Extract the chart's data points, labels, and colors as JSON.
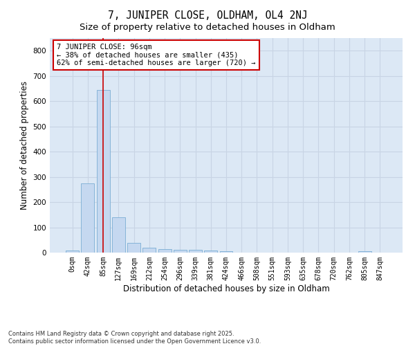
{
  "title": "7, JUNIPER CLOSE, OLDHAM, OL4 2NJ",
  "subtitle": "Size of property relative to detached houses in Oldham",
  "xlabel": "Distribution of detached houses by size in Oldham",
  "ylabel": "Number of detached properties",
  "bin_labels": [
    "0sqm",
    "42sqm",
    "85sqm",
    "127sqm",
    "169sqm",
    "212sqm",
    "254sqm",
    "296sqm",
    "339sqm",
    "381sqm",
    "424sqm",
    "466sqm",
    "508sqm",
    "551sqm",
    "593sqm",
    "635sqm",
    "678sqm",
    "720sqm",
    "762sqm",
    "805sqm",
    "847sqm"
  ],
  "bar_values": [
    8,
    275,
    645,
    140,
    38,
    20,
    14,
    12,
    12,
    8,
    5,
    0,
    0,
    0,
    0,
    0,
    0,
    0,
    0,
    5,
    0
  ],
  "bar_color": "#c5d8f0",
  "bar_edge_color": "#7aadd4",
  "ylim": [
    0,
    850
  ],
  "yticks": [
    0,
    100,
    200,
    300,
    400,
    500,
    600,
    700,
    800
  ],
  "vline_x": 2,
  "annotation_title": "7 JUNIPER CLOSE: 96sqm",
  "annotation_line1": "← 38% of detached houses are smaller (435)",
  "annotation_line2": "62% of semi-detached houses are larger (720) →",
  "annotation_box_color": "#ffffff",
  "annotation_box_edge": "#cc0000",
  "vline_color": "#cc0000",
  "grid_color": "#c8d4e4",
  "plot_bg_color": "#dce8f5",
  "fig_bg_color": "#ffffff",
  "footer_line1": "Contains HM Land Registry data © Crown copyright and database right 2025.",
  "footer_line2": "Contains public sector information licensed under the Open Government Licence v3.0.",
  "title_fontsize": 10.5,
  "subtitle_fontsize": 9.5,
  "axis_label_fontsize": 8.5,
  "tick_fontsize": 7,
  "annotation_fontsize": 7.5
}
